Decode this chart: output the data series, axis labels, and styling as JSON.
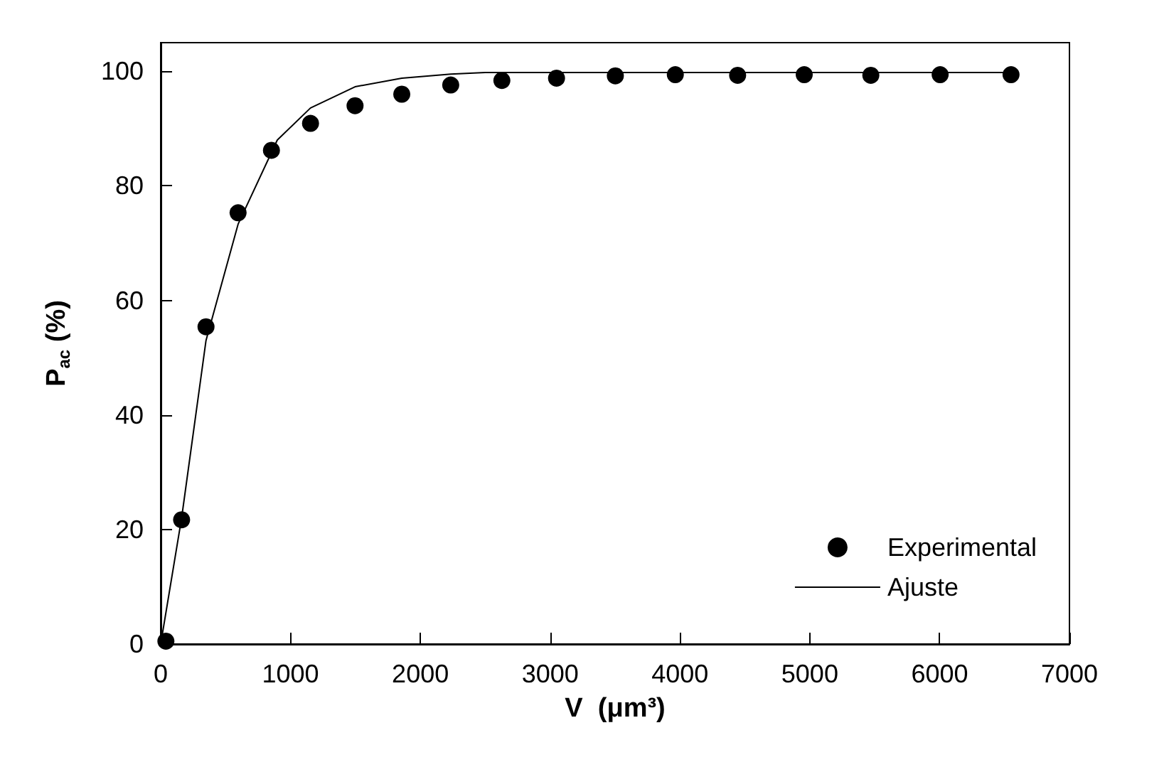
{
  "chart_data": {
    "type": "scatter",
    "xlabel": "V  (μm³)",
    "ylabel": "P$_{ac}$ (%)",
    "xlim": [
      0,
      7000
    ],
    "xticks": [
      0,
      1000,
      2000,
      3000,
      4000,
      5000,
      6000,
      7000
    ],
    "ylim": [
      0,
      105
    ],
    "yticks": [
      0,
      20,
      40,
      60,
      80,
      100
    ],
    "grid": false,
    "legend": "bottom right",
    "series": [
      {
        "name": "Experimental",
        "marker": "circle",
        "color": "#000000",
        "x": [
          40,
          161,
          349,
          596,
          853,
          1154,
          1497,
          1857,
          2234,
          2628,
          3049,
          3502,
          3964,
          4444,
          4957,
          5470,
          6004,
          6550
        ],
        "values": [
          0.5,
          21.7,
          55.4,
          75.3,
          86.2,
          90.9,
          94.0,
          96.0,
          97.6,
          98.4,
          98.8,
          99.2,
          99.4,
          99.3,
          99.4,
          99.3,
          99.4,
          99.4
        ]
      },
      {
        "name": "Ajuste",
        "type": "line",
        "marker": "none",
        "line_style": "solid",
        "color": "#000000",
        "x": [
          0,
          161,
          349,
          596,
          898,
          1154,
          1497,
          1857,
          2234,
          2500,
          3000,
          4000,
          5000,
          6000,
          6550
        ],
        "values": [
          0,
          22,
          53,
          73.3,
          88,
          93.6,
          97.3,
          98.8,
          99.5,
          99.8,
          99.8,
          99.8,
          99.8,
          99.8,
          99.8
        ]
      }
    ]
  }
}
